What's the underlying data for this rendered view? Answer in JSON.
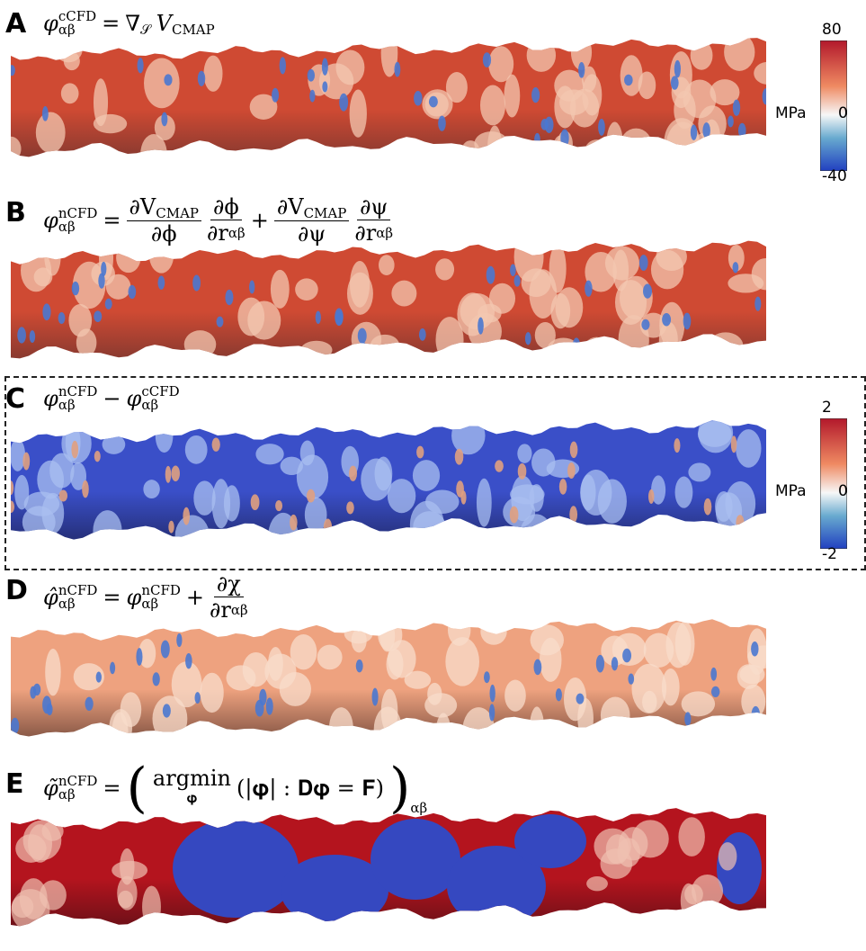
{
  "panels": [
    {
      "label": "A",
      "equation": [
        {
          "base": "φ",
          "sub": "αβ",
          "sup": "cCFD"
        },
        {
          "text": "="
        },
        {
          "base": "∇",
          "sub": "𝒮"
        },
        {
          "base": "V",
          "sub": "CMAP"
        }
      ],
      "colorbar": {
        "ticks": [
          80,
          0,
          -40
        ],
        "unit": "MPa"
      }
    },
    {
      "label": "B",
      "equation": [
        {
          "base": "φ",
          "sub": "αβ",
          "sup": "nCFD"
        },
        {
          "text": "="
        },
        {
          "frac": {
            "num": [
              {
                "base": "∂V",
                "sub": "CMAP"
              }
            ],
            "den": [
              {
                "text": "∂ϕ"
              }
            ]
          }
        },
        {
          "frac": {
            "num": [
              {
                "text": "∂ϕ"
              }
            ],
            "den": [
              {
                "base": "∂r",
                "sup": "αβ"
              }
            ]
          }
        },
        {
          "text": "+"
        },
        {
          "frac": {
            "num": [
              {
                "base": "∂V",
                "sub": "CMAP"
              }
            ],
            "den": [
              {
                "text": "∂ψ"
              }
            ]
          }
        },
        {
          "frac": {
            "num": [
              {
                "text": "∂ψ"
              }
            ],
            "den": [
              {
                "base": "∂r",
                "sup": "αβ"
              }
            ]
          }
        }
      ]
    },
    {
      "label": "C",
      "equation": [
        {
          "base": "φ",
          "sub": "αβ",
          "sup": "nCFD"
        },
        {
          "text": "−"
        },
        {
          "base": "φ",
          "sub": "αβ",
          "sup": "cCFD"
        }
      ],
      "colorbar": {
        "ticks": [
          2,
          0,
          -2
        ],
        "unit": "MPa"
      }
    },
    {
      "label": "D",
      "equation": [
        {
          "base": "φ̂",
          "sub": "αβ",
          "sup": "nCFD"
        },
        {
          "text": "="
        },
        {
          "base": "φ",
          "sub": "αβ",
          "sup": "nCFD"
        },
        {
          "text": "+"
        },
        {
          "frac": {
            "num": [
              {
                "text": "∂χ"
              }
            ],
            "den": [
              {
                "base": "∂r",
                "sup": "αβ"
              }
            ]
          }
        }
      ]
    },
    {
      "label": "E",
      "equation": [
        {
          "base": "φ̃",
          "sub": "αβ",
          "sup": "nCFD"
        },
        {
          "text": "="
        },
        {
          "big": "("
        },
        {
          "base": "argmin",
          "under": "𝛗"
        },
        {
          "text": "(|𝛗|  :  𝐃𝛗 = 𝐅)"
        },
        {
          "big": ")",
          "sub": "αβ"
        }
      ]
    }
  ]
}
